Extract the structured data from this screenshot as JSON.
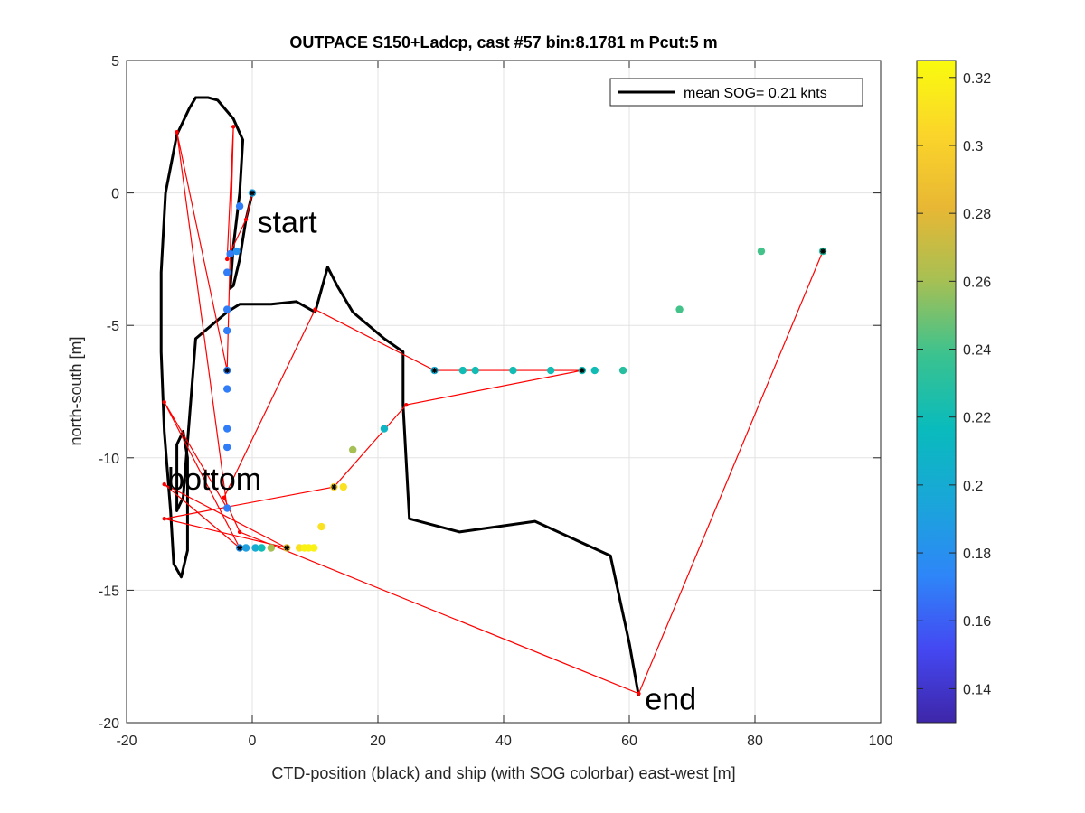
{
  "chart_data": {
    "type": "scatter",
    "title": "OUTPACE S150+Ladcp, cast #57 bin:8.1781 m  Pcut:5 m",
    "xlabel": "CTD-position (black) and ship (with SOG colorbar) east-west [m]",
    "ylabel": "north-south [m]",
    "xlim": [
      -20,
      100
    ],
    "ylim": [
      -20,
      5
    ],
    "xticks": [
      -20,
      0,
      20,
      40,
      60,
      80,
      100
    ],
    "yticks": [
      5,
      0,
      -5,
      -10,
      -15,
      -20
    ],
    "xtick_labels": [
      "-20",
      "0",
      "20",
      "40",
      "60",
      "80",
      "100"
    ],
    "ytick_labels": [
      "5",
      "0",
      "-5",
      "-10",
      "-15",
      "-20"
    ],
    "grid": true,
    "legend": {
      "position": "top-right",
      "label": "mean SOG=  0.21 knts"
    },
    "colorbar": {
      "range": [
        0.13,
        0.325
      ],
      "ticks": [
        0.14,
        0.16,
        0.18,
        0.2,
        0.22,
        0.24,
        0.26,
        0.28,
        0.3,
        0.32
      ],
      "tick_labels": [
        "0.14",
        "0.16",
        "0.18",
        "0.2",
        "0.22",
        "0.24",
        "0.26",
        "0.28",
        "0.3",
        "0.32"
      ],
      "colormap": [
        "#3e26a8",
        "#4448f2",
        "#2e86f8",
        "#1aa6d9",
        "#09bbbc",
        "#3bc28f",
        "#a6c054",
        "#e8b734",
        "#fbd52a",
        "#f9fb0e"
      ]
    },
    "annotations": [
      {
        "text": "start",
        "x": 0.8,
        "y": -1.5
      },
      {
        "text": "bottom",
        "x": -13.5,
        "y": -11.2
      },
      {
        "text": "end",
        "x": 62.5,
        "y": -19.5
      }
    ],
    "series": [
      {
        "name": "mean SOG=  0.21 knts",
        "style": "line",
        "color": "#000000",
        "points": [
          [
            0,
            0
          ],
          [
            -1,
            -1
          ],
          [
            -2,
            -2.5
          ],
          [
            -3,
            -3.5
          ],
          [
            -3.5,
            -3.6
          ],
          [
            -3,
            -2
          ],
          [
            -2,
            0
          ],
          [
            -1.5,
            2
          ],
          [
            -3,
            2.8
          ],
          [
            -5.5,
            3.5
          ],
          [
            -7,
            3.6
          ],
          [
            -9,
            3.6
          ],
          [
            -10,
            3.2
          ],
          [
            -12,
            2.2
          ],
          [
            -13.8,
            0
          ],
          [
            -14.5,
            -3
          ],
          [
            -14.5,
            -6
          ],
          [
            -14,
            -9
          ],
          [
            -13,
            -12
          ],
          [
            -12.5,
            -14
          ],
          [
            -11.3,
            -14.5
          ],
          [
            -10.3,
            -13.5
          ],
          [
            -10.3,
            -10
          ],
          [
            -11,
            -9
          ],
          [
            -12,
            -9.5
          ],
          [
            -12,
            -11
          ],
          [
            -12,
            -12
          ],
          [
            -11,
            -11.5
          ],
          [
            -10,
            -8.5
          ],
          [
            -9,
            -5.5
          ],
          [
            -4,
            -4.5
          ],
          [
            -2,
            -4.2
          ],
          [
            3,
            -4.2
          ],
          [
            7,
            -4.1
          ],
          [
            10,
            -4.5
          ],
          [
            12,
            -2.8
          ],
          [
            13.5,
            -3.5
          ],
          [
            16,
            -4.5
          ],
          [
            21,
            -5.5
          ],
          [
            24,
            -6
          ],
          [
            24,
            -8
          ],
          [
            25,
            -12.3
          ],
          [
            33,
            -12.8
          ],
          [
            45,
            -12.4
          ],
          [
            57,
            -13.7
          ],
          [
            60,
            -17
          ],
          [
            61.5,
            -19
          ]
        ]
      },
      {
        "name": "",
        "style": "line",
        "color": "#ff0000",
        "points": [
          [
            0,
            0
          ],
          [
            -1,
            -1
          ],
          [
            -4,
            -2.5
          ],
          [
            -3,
            2.5
          ],
          [
            -4,
            -6.7
          ],
          [
            -12,
            2.3
          ],
          [
            -4,
            -11.9
          ],
          [
            -14,
            -7.9
          ],
          [
            -2,
            -13.4
          ],
          [
            -14,
            -11
          ],
          [
            5.5,
            -13.4
          ],
          [
            -14,
            -12.3
          ],
          [
            13,
            -11.1
          ],
          [
            24.5,
            -8
          ],
          [
            52.5,
            -6.7
          ],
          [
            29,
            -6.7
          ],
          [
            10,
            -4.4
          ],
          [
            -4.5,
            -11.5
          ],
          [
            -2,
            -12.8
          ],
          [
            61.5,
            -18.9
          ],
          [
            90.8,
            -2.2
          ]
        ]
      },
      {
        "name": "",
        "style": "markers",
        "marker": "dot",
        "values": [
          {
            "x": 0,
            "y": 0,
            "sog": 0.19
          },
          {
            "x": -2,
            "y": -0.5,
            "sog": 0.17
          },
          {
            "x": -2.5,
            "y": -2.2,
            "sog": 0.18
          },
          {
            "x": -3.5,
            "y": -2.3,
            "sog": 0.17
          },
          {
            "x": -4,
            "y": -3,
            "sog": 0.17
          },
          {
            "x": -4,
            "y": -4.4,
            "sog": 0.17
          },
          {
            "x": -4,
            "y": -5.2,
            "sog": 0.17
          },
          {
            "x": -4,
            "y": -6.7,
            "sog": 0.17
          },
          {
            "x": -4,
            "y": -7.4,
            "sog": 0.17
          },
          {
            "x": -4,
            "y": -8.9,
            "sog": 0.17
          },
          {
            "x": -4,
            "y": -9.6,
            "sog": 0.17
          },
          {
            "x": -4,
            "y": -11.9,
            "sog": 0.17
          },
          {
            "x": -2,
            "y": -13.4,
            "sog": 0.18
          },
          {
            "x": -1,
            "y": -13.4,
            "sog": 0.19
          },
          {
            "x": 0.5,
            "y": -13.4,
            "sog": 0.2
          },
          {
            "x": 1.5,
            "y": -13.4,
            "sog": 0.22
          },
          {
            "x": 3,
            "y": -13.4,
            "sog": 0.26
          },
          {
            "x": 5.5,
            "y": -13.4,
            "sog": 0.28
          },
          {
            "x": 7.5,
            "y": -13.4,
            "sog": 0.31
          },
          {
            "x": 8.3,
            "y": -13.4,
            "sog": 0.32
          },
          {
            "x": 9,
            "y": -13.4,
            "sog": 0.32
          },
          {
            "x": 9.8,
            "y": -13.4,
            "sog": 0.32
          },
          {
            "x": 11,
            "y": -12.6,
            "sog": 0.31
          },
          {
            "x": 13,
            "y": -11.1,
            "sog": 0.3
          },
          {
            "x": 14.5,
            "y": -11.1,
            "sog": 0.31
          },
          {
            "x": 16,
            "y": -9.7,
            "sog": 0.26
          },
          {
            "x": 21,
            "y": -8.9,
            "sog": 0.21
          },
          {
            "x": 29,
            "y": -6.7,
            "sog": 0.2
          },
          {
            "x": 33.5,
            "y": -6.7,
            "sog": 0.22
          },
          {
            "x": 35.5,
            "y": -6.7,
            "sog": 0.22
          },
          {
            "x": 41.5,
            "y": -6.7,
            "sog": 0.22
          },
          {
            "x": 47.5,
            "y": -6.7,
            "sog": 0.22
          },
          {
            "x": 52.5,
            "y": -6.7,
            "sog": 0.22
          },
          {
            "x": 54.5,
            "y": -6.7,
            "sog": 0.22
          },
          {
            "x": 59,
            "y": -6.7,
            "sog": 0.23
          },
          {
            "x": 68,
            "y": -4.4,
            "sog": 0.24
          },
          {
            "x": 81,
            "y": -2.2,
            "sog": 0.24
          },
          {
            "x": 90.8,
            "y": -2.2,
            "sog": 0.23
          }
        ]
      },
      {
        "name": "",
        "style": "markers",
        "marker": "star",
        "color": "#000000",
        "values": [
          [
            0,
            0
          ],
          [
            -4,
            -6.7
          ],
          [
            -2,
            -13.4
          ],
          [
            5.5,
            -13.4
          ],
          [
            13,
            -11.1
          ],
          [
            29,
            -6.7
          ],
          [
            52.5,
            -6.7
          ],
          [
            90.8,
            -2.2
          ]
        ]
      }
    ]
  }
}
